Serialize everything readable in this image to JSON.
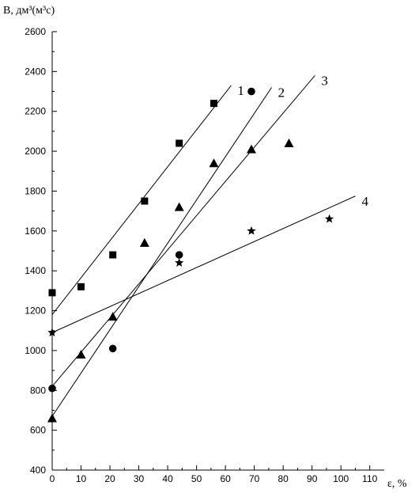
{
  "chart_data": {
    "type": "scatter",
    "ylabel": "B, дм³(м³с)",
    "xlabel": "ε, %",
    "xlim": [
      0,
      115
    ],
    "ylim": [
      400,
      2600
    ],
    "x_ticks": [
      0,
      10,
      20,
      30,
      40,
      50,
      60,
      70,
      80,
      90,
      100,
      110
    ],
    "y_ticks": [
      400,
      600,
      800,
      1000,
      1200,
      1400,
      1600,
      1800,
      2000,
      2200,
      2400,
      2600
    ],
    "grid": false,
    "series": [
      {
        "label": "1",
        "marker": "square",
        "points": [
          [
            0,
            1290
          ],
          [
            10,
            1320
          ],
          [
            21,
            1480
          ],
          [
            32,
            1750
          ],
          [
            44,
            2040
          ],
          [
            56,
            2240
          ]
        ],
        "fit_line": [
          [
            0,
            1180
          ],
          [
            62,
            2330
          ]
        ]
      },
      {
        "label": "2",
        "marker": "circle",
        "points": [
          [
            0,
            810
          ],
          [
            21,
            1010
          ],
          [
            44,
            1480
          ],
          [
            69,
            2300
          ]
        ],
        "fit_line": [
          [
            0,
            670
          ],
          [
            76,
            2320
          ]
        ]
      },
      {
        "label": "3",
        "marker": "triangle",
        "points": [
          [
            0,
            660
          ],
          [
            10,
            980
          ],
          [
            21,
            1170
          ],
          [
            32,
            1540
          ],
          [
            44,
            1720
          ],
          [
            56,
            1940
          ],
          [
            69,
            2010
          ],
          [
            82,
            2040
          ]
        ],
        "fit_line": [
          [
            0,
            820
          ],
          [
            91,
            2380
          ]
        ]
      },
      {
        "label": "4",
        "marker": "star",
        "points": [
          [
            0,
            1090
          ],
          [
            44,
            1440
          ],
          [
            69,
            1600
          ],
          [
            96,
            1660
          ]
        ],
        "fit_line": [
          [
            0,
            1090
          ],
          [
            105,
            1775
          ]
        ]
      }
    ]
  }
}
